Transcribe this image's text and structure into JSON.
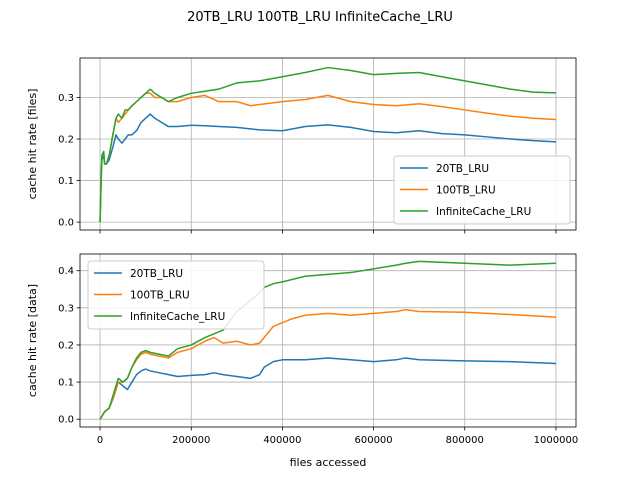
{
  "figure": {
    "title": "20TB_LRU 100TB_LRU InfiniteCache_LRU",
    "xlabel": "files accessed"
  },
  "colors": {
    "20TB_LRU": "#1f77b4",
    "100TB_LRU": "#ff7f0e",
    "InfiniteCache_LRU": "#2ca02c",
    "grid": "#b0b0b0"
  },
  "chart_data": [
    {
      "type": "line",
      "title": "",
      "xlabel": "",
      "ylabel": "cache hit rate [files]",
      "xlim": [
        -44000,
        1044000
      ],
      "ylim": [
        -0.019,
        0.395
      ],
      "xticks": [
        0,
        200000,
        400000,
        600000,
        800000,
        1000000
      ],
      "xtick_labels": [
        "",
        "",
        "",
        "",
        "",
        ""
      ],
      "yticks": [
        0.0,
        0.1,
        0.2,
        0.3
      ],
      "ytick_labels": [
        "0.0",
        "0.1",
        "0.2",
        "0.3"
      ],
      "grid": true,
      "legend": "center-right",
      "legend_entries": [
        "20TB_LRU",
        "100TB_LRU",
        "InfiniteCache_LRU"
      ],
      "series": [
        {
          "name": "20TB_LRU",
          "x": [
            0,
            2000,
            4000,
            8000,
            10000,
            14000,
            20000,
            28000,
            35000,
            40000,
            48000,
            55000,
            62000,
            70000,
            80000,
            90000,
            100000,
            110000,
            120000,
            135000,
            150000,
            170000,
            200000,
            230000,
            260000,
            300000,
            350000,
            400000,
            450000,
            500000,
            550000,
            600000,
            650000,
            700000,
            750000,
            800000,
            850000,
            900000,
            950000,
            1000000
          ],
          "values": [
            0.0,
            0.09,
            0.15,
            0.16,
            0.14,
            0.14,
            0.15,
            0.18,
            0.21,
            0.2,
            0.19,
            0.2,
            0.21,
            0.21,
            0.22,
            0.24,
            0.25,
            0.26,
            0.25,
            0.24,
            0.23,
            0.23,
            0.233,
            0.232,
            0.23,
            0.228,
            0.222,
            0.22,
            0.23,
            0.234,
            0.228,
            0.218,
            0.215,
            0.22,
            0.213,
            0.21,
            0.205,
            0.2,
            0.196,
            0.193
          ]
        },
        {
          "name": "100TB_LRU",
          "x": [
            0,
            2000,
            4000,
            8000,
            10000,
            14000,
            20000,
            28000,
            35000,
            40000,
            48000,
            55000,
            62000,
            70000,
            80000,
            90000,
            100000,
            110000,
            120000,
            135000,
            150000,
            170000,
            200000,
            230000,
            260000,
            300000,
            330000,
            350000,
            400000,
            450000,
            500000,
            550000,
            600000,
            650000,
            700000,
            750000,
            800000,
            850000,
            900000,
            950000,
            1000000
          ],
          "values": [
            0.0,
            0.09,
            0.16,
            0.17,
            0.14,
            0.14,
            0.16,
            0.21,
            0.25,
            0.24,
            0.25,
            0.26,
            0.27,
            0.28,
            0.29,
            0.3,
            0.31,
            0.31,
            0.3,
            0.3,
            0.29,
            0.29,
            0.3,
            0.305,
            0.29,
            0.29,
            0.28,
            0.283,
            0.29,
            0.295,
            0.305,
            0.29,
            0.283,
            0.28,
            0.285,
            0.278,
            0.27,
            0.262,
            0.255,
            0.25,
            0.247
          ]
        },
        {
          "name": "InfiniteCache_LRU",
          "x": [
            0,
            2000,
            4000,
            8000,
            10000,
            14000,
            20000,
            28000,
            35000,
            40000,
            48000,
            55000,
            62000,
            70000,
            80000,
            90000,
            100000,
            110000,
            120000,
            135000,
            150000,
            170000,
            200000,
            230000,
            260000,
            300000,
            350000,
            400000,
            450000,
            500000,
            550000,
            600000,
            650000,
            700000,
            750000,
            800000,
            850000,
            900000,
            950000,
            1000000
          ],
          "values": [
            0.0,
            0.09,
            0.16,
            0.17,
            0.14,
            0.14,
            0.16,
            0.21,
            0.25,
            0.26,
            0.25,
            0.27,
            0.27,
            0.28,
            0.29,
            0.3,
            0.31,
            0.32,
            0.31,
            0.3,
            0.29,
            0.3,
            0.31,
            0.315,
            0.32,
            0.335,
            0.34,
            0.35,
            0.36,
            0.372,
            0.365,
            0.355,
            0.358,
            0.36,
            0.35,
            0.34,
            0.33,
            0.32,
            0.313,
            0.311
          ]
        }
      ]
    },
    {
      "type": "line",
      "title": "",
      "xlabel": "files accessed",
      "ylabel": "cache hit rate [data]",
      "xlim": [
        -44000,
        1044000
      ],
      "ylim": [
        -0.021,
        0.445
      ],
      "xticks": [
        0,
        200000,
        400000,
        600000,
        800000,
        1000000
      ],
      "xtick_labels": [
        "0",
        "200000",
        "400000",
        "600000",
        "800000",
        "1000000"
      ],
      "yticks": [
        0.0,
        0.1,
        0.2,
        0.3,
        0.4
      ],
      "ytick_labels": [
        "0.0",
        "0.1",
        "0.2",
        "0.3",
        "0.4"
      ],
      "grid": true,
      "legend": "upper-left",
      "legend_entries": [
        "20TB_LRU",
        "100TB_LRU",
        "InfiniteCache_LRU"
      ],
      "series": [
        {
          "name": "20TB_LRU",
          "x": [
            0,
            5000,
            10000,
            20000,
            30000,
            40000,
            50000,
            60000,
            70000,
            80000,
            90000,
            100000,
            110000,
            130000,
            150000,
            170000,
            200000,
            230000,
            250000,
            270000,
            300000,
            330000,
            350000,
            360000,
            380000,
            400000,
            450000,
            500000,
            550000,
            600000,
            650000,
            670000,
            700000,
            800000,
            900000,
            1000000
          ],
          "values": [
            0.0,
            0.01,
            0.02,
            0.03,
            0.06,
            0.1,
            0.09,
            0.08,
            0.1,
            0.12,
            0.13,
            0.135,
            0.13,
            0.125,
            0.12,
            0.115,
            0.118,
            0.12,
            0.125,
            0.12,
            0.115,
            0.11,
            0.12,
            0.14,
            0.155,
            0.16,
            0.16,
            0.165,
            0.16,
            0.155,
            0.16,
            0.165,
            0.16,
            0.157,
            0.155,
            0.15
          ]
        },
        {
          "name": "100TB_LRU",
          "x": [
            0,
            5000,
            10000,
            20000,
            30000,
            40000,
            50000,
            60000,
            70000,
            80000,
            90000,
            100000,
            110000,
            130000,
            150000,
            170000,
            200000,
            230000,
            250000,
            270000,
            300000,
            330000,
            350000,
            360000,
            380000,
            400000,
            420000,
            450000,
            500000,
            550000,
            600000,
            650000,
            670000,
            700000,
            800000,
            900000,
            1000000
          ],
          "values": [
            0.0,
            0.01,
            0.02,
            0.03,
            0.06,
            0.1,
            0.1,
            0.11,
            0.14,
            0.16,
            0.175,
            0.18,
            0.175,
            0.17,
            0.165,
            0.18,
            0.19,
            0.21,
            0.22,
            0.205,
            0.21,
            0.2,
            0.205,
            0.22,
            0.25,
            0.26,
            0.27,
            0.28,
            0.285,
            0.28,
            0.285,
            0.29,
            0.295,
            0.29,
            0.288,
            0.282,
            0.275
          ]
        },
        {
          "name": "InfiniteCache_LRU",
          "x": [
            0,
            5000,
            10000,
            20000,
            30000,
            40000,
            50000,
            60000,
            70000,
            80000,
            90000,
            100000,
            110000,
            130000,
            150000,
            170000,
            200000,
            230000,
            250000,
            270000,
            300000,
            330000,
            350000,
            360000,
            380000,
            400000,
            450000,
            500000,
            550000,
            600000,
            650000,
            670000,
            700000,
            800000,
            900000,
            1000000
          ],
          "values": [
            0.0,
            0.01,
            0.02,
            0.03,
            0.07,
            0.11,
            0.1,
            0.11,
            0.14,
            0.165,
            0.18,
            0.185,
            0.18,
            0.175,
            0.17,
            0.19,
            0.2,
            0.22,
            0.23,
            0.24,
            0.29,
            0.32,
            0.34,
            0.355,
            0.365,
            0.37,
            0.385,
            0.39,
            0.395,
            0.405,
            0.415,
            0.42,
            0.425,
            0.42,
            0.415,
            0.42
          ]
        }
      ]
    }
  ]
}
